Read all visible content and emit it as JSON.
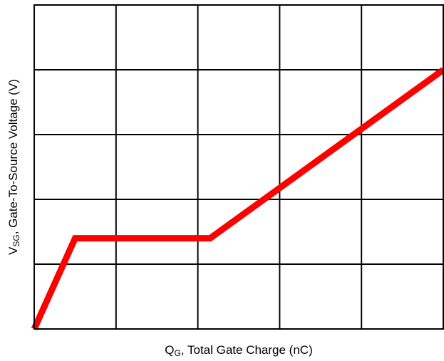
{
  "chart_data": {
    "type": "line",
    "title": "",
    "xlabel_main": "Q",
    "xlabel_sub": "G",
    "xlabel_rest": ", Total Gate Charge (nC)",
    "ylabel_main": "V",
    "ylabel_sub": "SG",
    "ylabel_rest": ", Gate-To-Source Voltage (V)",
    "grid": true,
    "tick_labels_shown": false,
    "xlim": [
      0,
      5
    ],
    "ylim": [
      0,
      5
    ],
    "series": [
      {
        "color": "#ff0000",
        "points": [
          {
            "x": 0.0,
            "y": 0.0
          },
          {
            "x": 0.5,
            "y": 1.4
          },
          {
            "x": 2.15,
            "y": 1.4
          },
          {
            "x": 5.0,
            "y": 4.0
          }
        ]
      }
    ]
  }
}
